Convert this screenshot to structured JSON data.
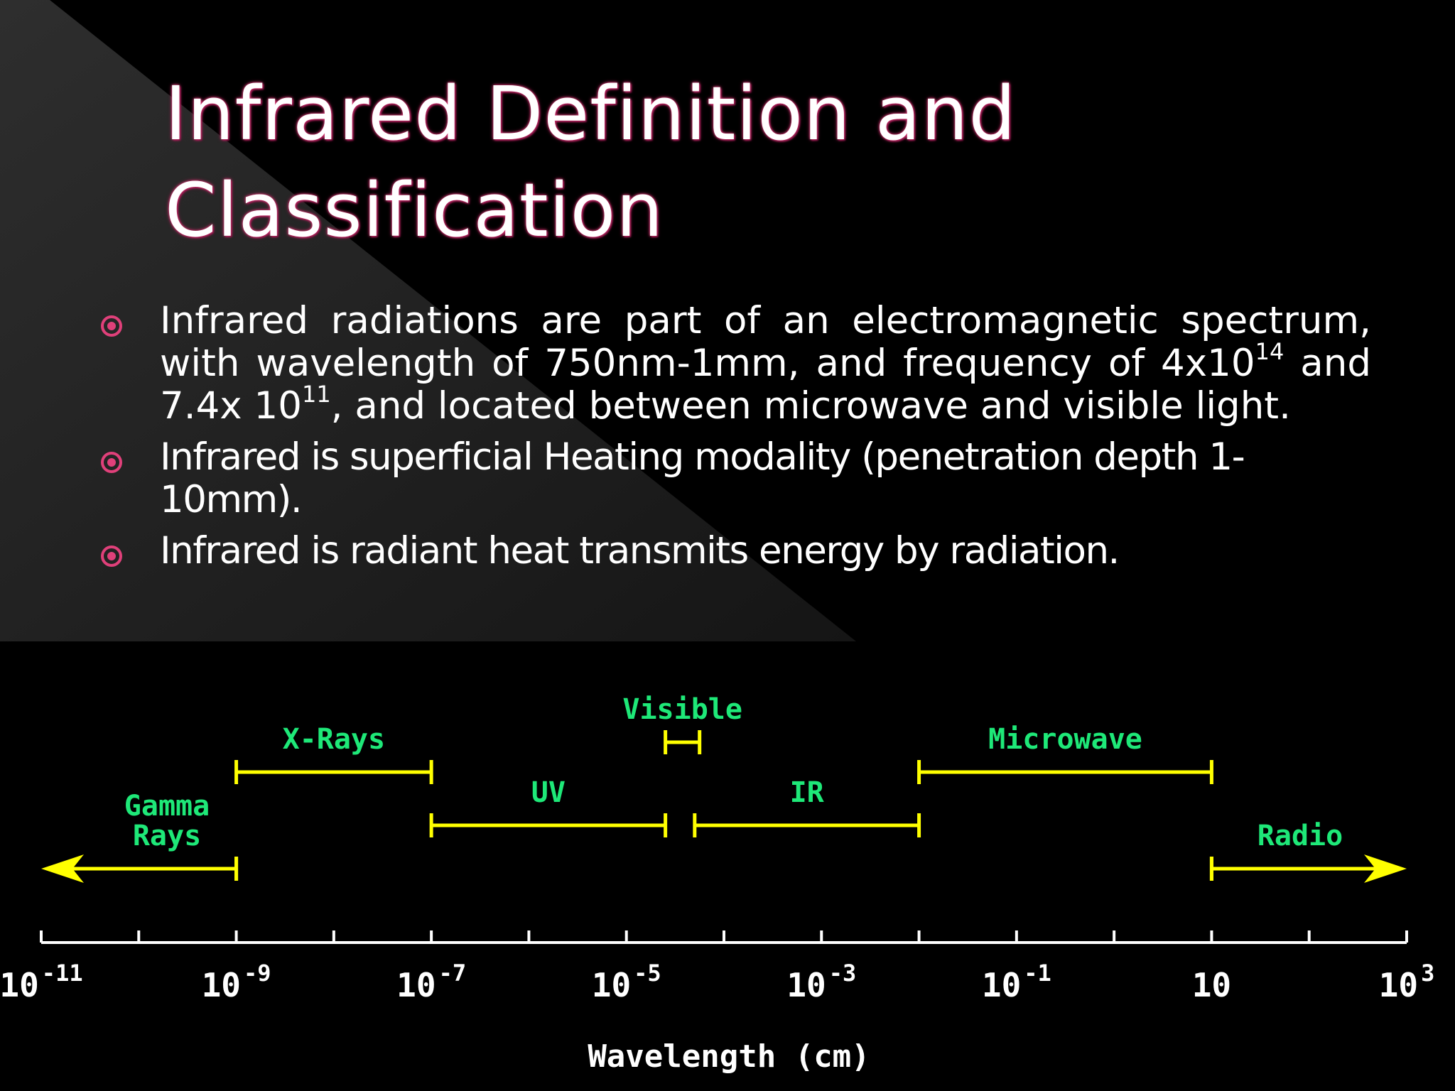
{
  "slide": {
    "title_lines": [
      "Infrared Definition and",
      "Classification"
    ],
    "accent_color": "#e0407a",
    "bullet_icon": "circled-dot-icon",
    "bullets": [
      {
        "parts": [
          "Infrared radiations are part of an electromagnetic spectrum, with wavelength of 750nm-1mm,  and frequency of 4x10",
          "14",
          " and 7.4x 10",
          "11",
          ",  and located between microwave and visible light."
        ]
      },
      {
        "text": "Infrared is superficial Heating modality  (penetration  depth 1-10mm)."
      },
      {
        "text": "Infrared is radiant heat transmits energy by radiation."
      }
    ]
  },
  "spectrum": {
    "line_color": "#ffff00",
    "label_color": "#1ee878",
    "axis_title": "Wavelength (cm)",
    "axis": {
      "log_min": -11,
      "log_max": 3,
      "tick_labels": [
        {
          "log": -11,
          "base": "10",
          "exp": "-11"
        },
        {
          "log": -9,
          "base": "10",
          "exp": "-9"
        },
        {
          "log": -7,
          "base": "10",
          "exp": "-7"
        },
        {
          "log": -5,
          "base": "10",
          "exp": "-5"
        },
        {
          "log": -3,
          "base": "10",
          "exp": "-3"
        },
        {
          "log": -1,
          "base": "10",
          "exp": "-1"
        },
        {
          "log": 1,
          "base": "10",
          "exp": ""
        },
        {
          "log": 3,
          "base": "10",
          "exp": "3"
        }
      ]
    },
    "bands": [
      {
        "id": "gamma",
        "label_lines": [
          "Gamma",
          "Rays"
        ],
        "from": -11,
        "to": -9,
        "arrow_left": true,
        "row": 3
      },
      {
        "id": "xray",
        "label_lines": [
          "X-Rays"
        ],
        "from": -9,
        "to": -7,
        "row": 1
      },
      {
        "id": "uv",
        "label_lines": [
          "UV"
        ],
        "from": -7,
        "to": -4.6,
        "row": 2
      },
      {
        "id": "visible",
        "label_lines": [
          "Visible"
        ],
        "from": -4.6,
        "to": -4.25,
        "row": 0
      },
      {
        "id": "ir",
        "label_lines": [
          "IR"
        ],
        "from": -4.3,
        "to": -2,
        "row": 2
      },
      {
        "id": "microwave",
        "label_lines": [
          "Microwave"
        ],
        "from": -2,
        "to": 1,
        "row": 1
      },
      {
        "id": "radio",
        "label_lines": [
          "Radio"
        ],
        "from": 1,
        "to": 3,
        "arrow_right": true,
        "row": 3
      }
    ]
  }
}
